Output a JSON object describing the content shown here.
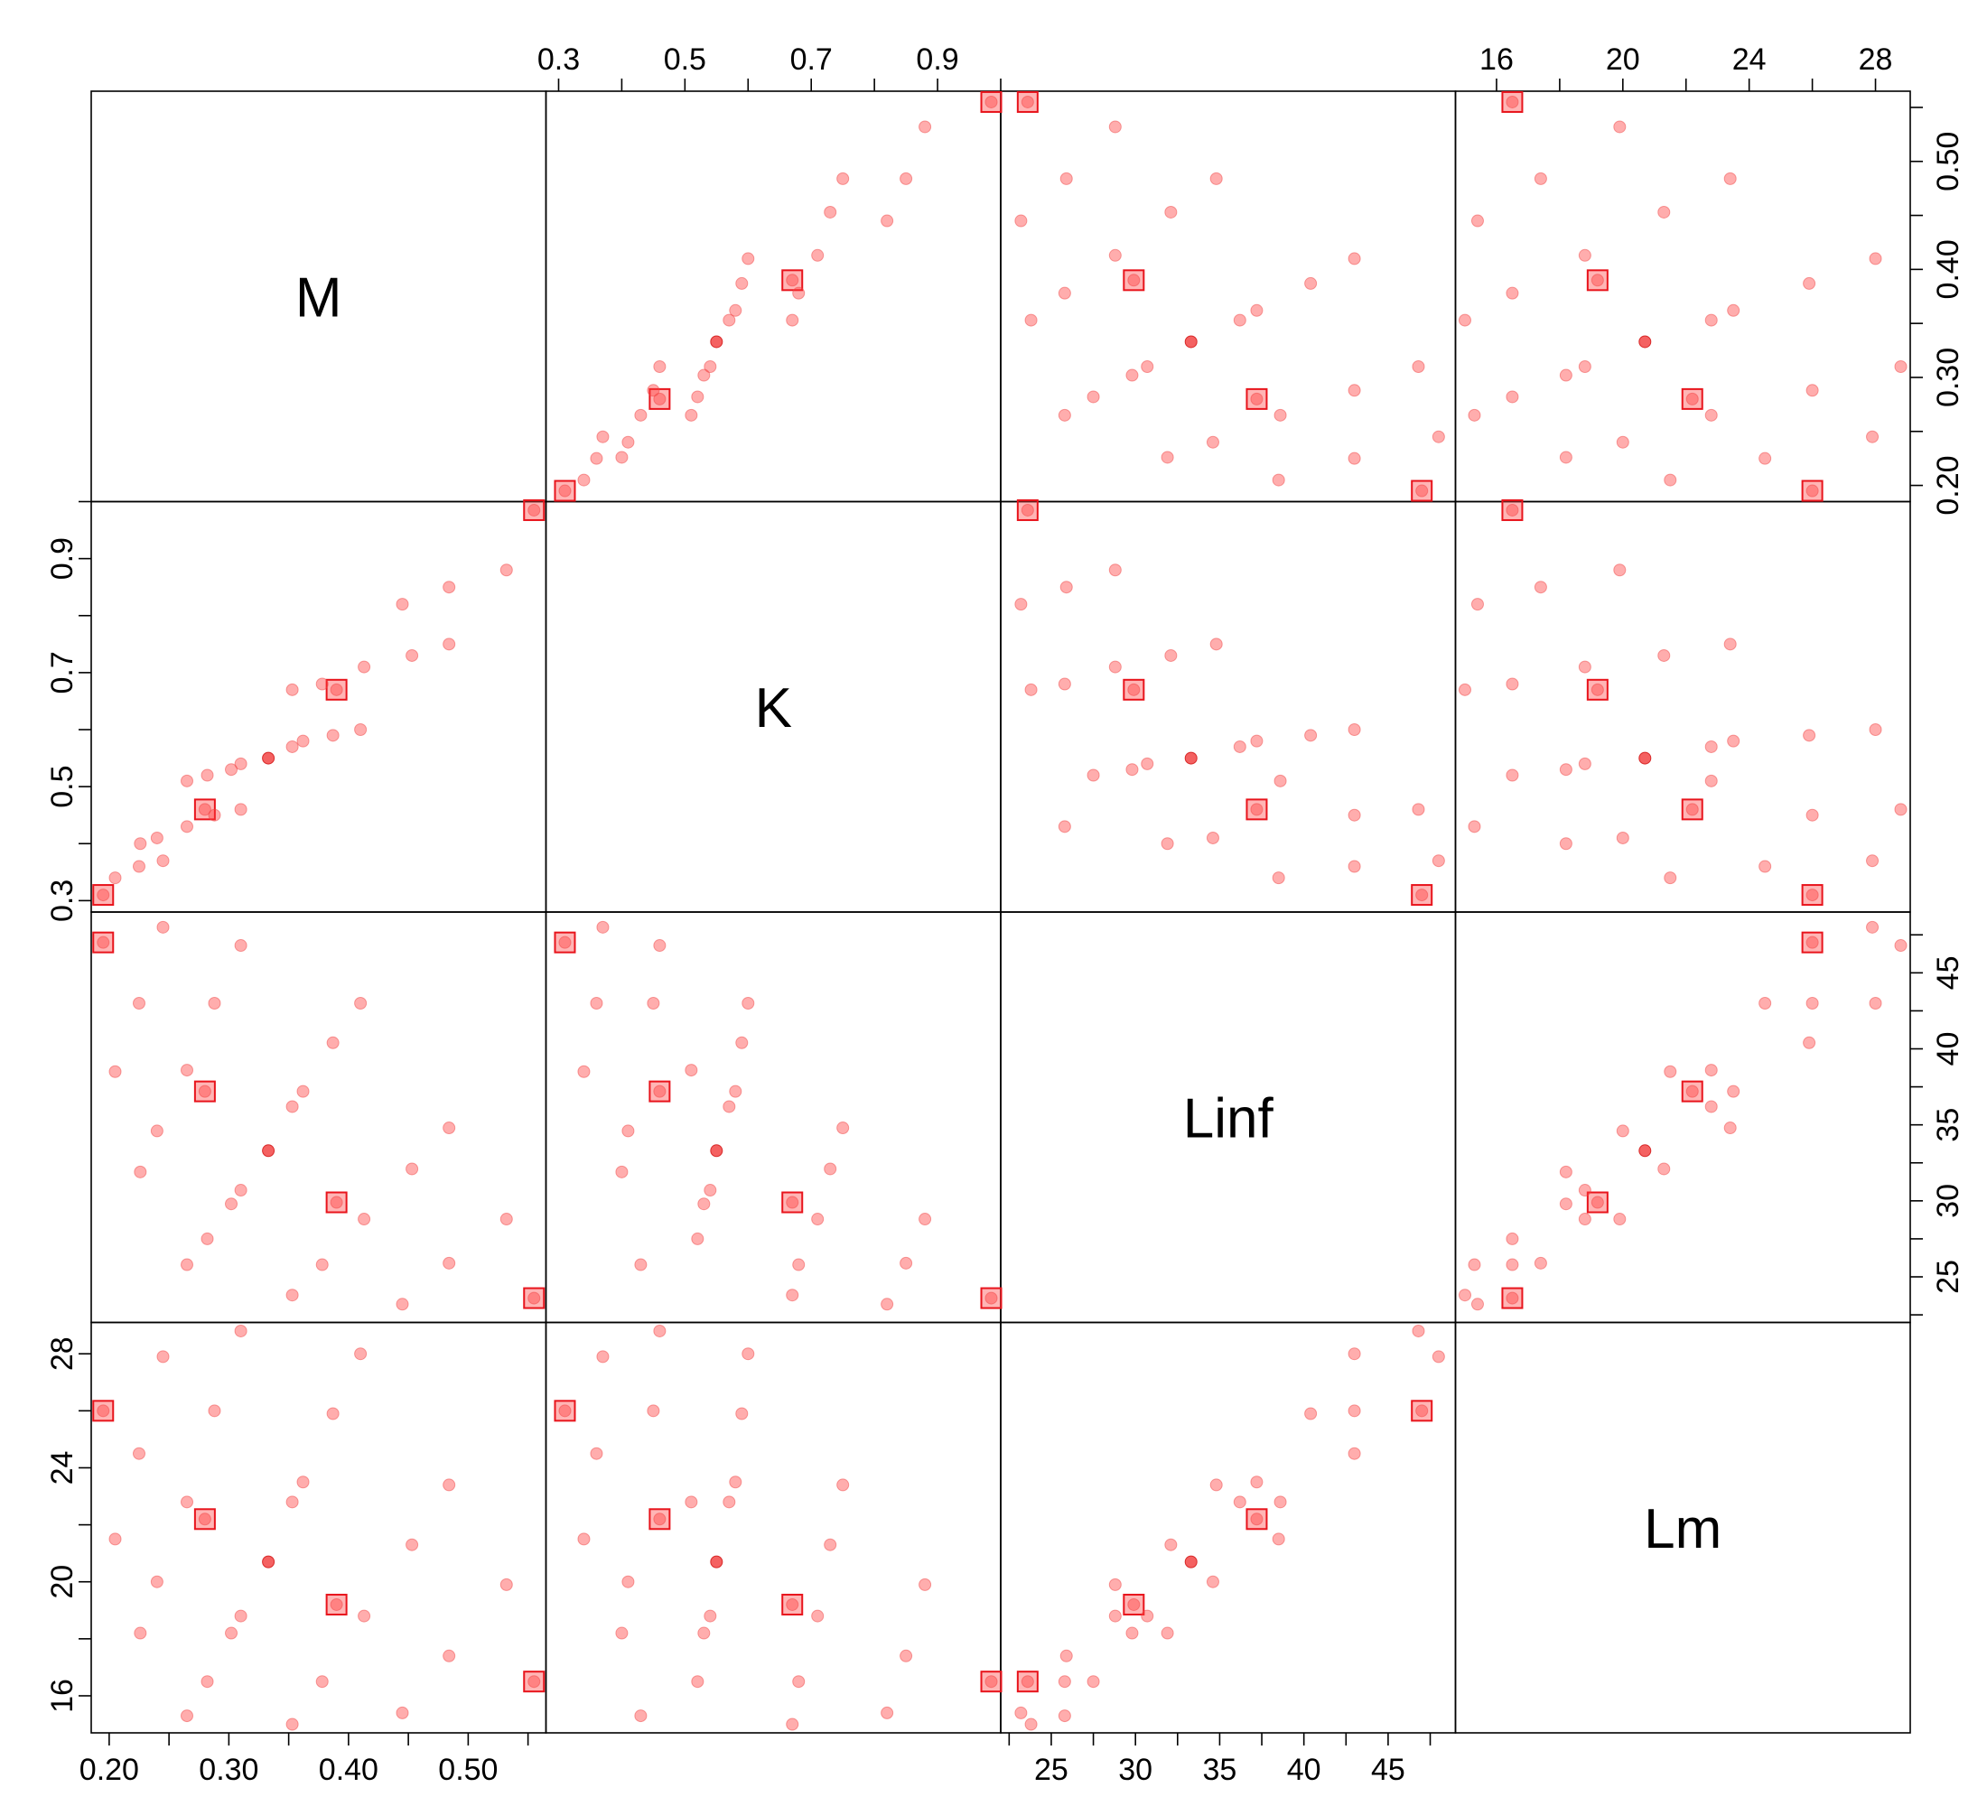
{
  "chart_data": {
    "type": "scatter",
    "variables": [
      {
        "name": "M",
        "lim": [
          0.185,
          0.565
        ],
        "ticks": [
          0.2,
          0.3,
          0.4,
          0.5
        ],
        "tick_labels": [
          "0.20",
          "0.30",
          "0.40",
          "0.50"
        ]
      },
      {
        "name": "K",
        "lim": [
          0.28,
          1.0
        ],
        "ticks": [
          0.3,
          0.5,
          0.7,
          0.9
        ],
        "tick_labels": [
          "0.3",
          "0.5",
          "0.7",
          "0.9"
        ]
      },
      {
        "name": "Linf",
        "lim": [
          22.0,
          49.0
        ],
        "ticks": [
          25,
          30,
          35,
          40,
          45
        ],
        "tick_labels": [
          "25",
          "30",
          "35",
          "40",
          "45"
        ]
      },
      {
        "name": "Lm",
        "lim": [
          14.7,
          29.1
        ],
        "ticks": [
          16,
          20,
          24,
          28
        ],
        "tick_labels": [
          "16",
          "20",
          "24",
          "28"
        ]
      }
    ],
    "points": [
      {
        "M": 0.195,
        "K": 0.31,
        "Linf": 47.0,
        "Lm": 26.0,
        "highlight": true
      },
      {
        "M": 0.28,
        "K": 0.46,
        "Linf": 37.2,
        "Lm": 22.2,
        "highlight": true
      },
      {
        "M": 0.39,
        "K": 0.67,
        "Linf": 29.9,
        "Lm": 19.2,
        "highlight": true
      },
      {
        "M": 0.555,
        "K": 0.985,
        "Linf": 23.6,
        "Lm": 16.5,
        "highlight": true
      },
      {
        "M": 0.333,
        "K": 0.55,
        "Linf": 33.3,
        "Lm": 20.7,
        "center": true
      },
      {
        "M": 0.205,
        "K": 0.34,
        "Linf": 38.5,
        "Lm": 21.5
      },
      {
        "M": 0.225,
        "K": 0.36,
        "Linf": 43.0,
        "Lm": 24.5
      },
      {
        "M": 0.226,
        "K": 0.4,
        "Linf": 31.9,
        "Lm": 18.2
      },
      {
        "M": 0.24,
        "K": 0.41,
        "Linf": 34.6,
        "Lm": 20.0
      },
      {
        "M": 0.245,
        "K": 0.37,
        "Linf": 48.0,
        "Lm": 27.9
      },
      {
        "M": 0.265,
        "K": 0.43,
        "Linf": 25.8,
        "Lm": 15.3
      },
      {
        "M": 0.265,
        "K": 0.51,
        "Linf": 38.6,
        "Lm": 22.8
      },
      {
        "M": 0.282,
        "K": 0.52,
        "Linf": 27.5,
        "Lm": 16.5
      },
      {
        "M": 0.288,
        "K": 0.45,
        "Linf": 43.0,
        "Lm": 26.0
      },
      {
        "M": 0.302,
        "K": 0.53,
        "Linf": 29.8,
        "Lm": 18.2
      },
      {
        "M": 0.31,
        "K": 0.54,
        "Linf": 30.7,
        "Lm": 18.8
      },
      {
        "M": 0.31,
        "K": 0.46,
        "Linf": 46.8,
        "Lm": 28.8
      },
      {
        "M": 0.353,
        "K": 0.57,
        "Linf": 36.2,
        "Lm": 22.8
      },
      {
        "M": 0.353,
        "K": 0.67,
        "Linf": 23.8,
        "Lm": 15.0
      },
      {
        "M": 0.362,
        "K": 0.58,
        "Linf": 37.2,
        "Lm": 23.5
      },
      {
        "M": 0.378,
        "K": 0.68,
        "Linf": 25.8,
        "Lm": 16.5
      },
      {
        "M": 0.387,
        "K": 0.59,
        "Linf": 40.4,
        "Lm": 25.9
      },
      {
        "M": 0.41,
        "K": 0.6,
        "Linf": 43.0,
        "Lm": 28.0
      },
      {
        "M": 0.413,
        "K": 0.71,
        "Linf": 28.8,
        "Lm": 18.8
      },
      {
        "M": 0.445,
        "K": 0.82,
        "Linf": 23.2,
        "Lm": 15.4
      },
      {
        "M": 0.453,
        "K": 0.73,
        "Linf": 32.1,
        "Lm": 21.3
      },
      {
        "M": 0.484,
        "K": 0.75,
        "Linf": 34.8,
        "Lm": 23.4
      },
      {
        "M": 0.484,
        "K": 0.85,
        "Linf": 25.9,
        "Lm": 17.4
      },
      {
        "M": 0.532,
        "K": 0.88,
        "Linf": 28.8,
        "Lm": 19.9
      }
    ],
    "grid": false,
    "legend": "none"
  }
}
